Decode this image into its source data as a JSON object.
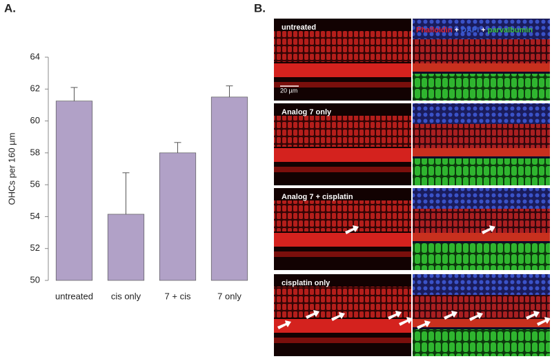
{
  "chart_data": {
    "type": "bar",
    "y_label": "OHCs per 160 µm",
    "categories": [
      "untreated",
      "cis only",
      "7 + cis",
      "7 only"
    ],
    "values": [
      61.25,
      54.15,
      58.0,
      61.5
    ],
    "errors": [
      0.85,
      2.6,
      0.65,
      0.7
    ],
    "color": "#b1a1c7",
    "edge_color": "#5a5a5a",
    "ylim": [
      50,
      64
    ],
    "yticks": [
      50,
      52,
      54,
      56,
      58,
      60,
      62,
      64
    ],
    "grid": false
  },
  "panel_labels": [
    "A.",
    "B."
  ],
  "micrographs": {
    "rows": [
      "untreated",
      "Analog 7 only",
      "Analog 7 + cisplatin",
      "cisplatin only"
    ],
    "legend": [
      {
        "text": "Phalloidin",
        "color": "#e3202a"
      },
      {
        "text": "+",
        "color": "#ffffff"
      },
      {
        "text": "DAPI",
        "color": "#3a62d8"
      },
      {
        "text": "+",
        "color": "#ffffff"
      },
      {
        "text": "parvalbumin",
        "color": "#3cc43c"
      }
    ],
    "scale_bar": "20 µm"
  }
}
